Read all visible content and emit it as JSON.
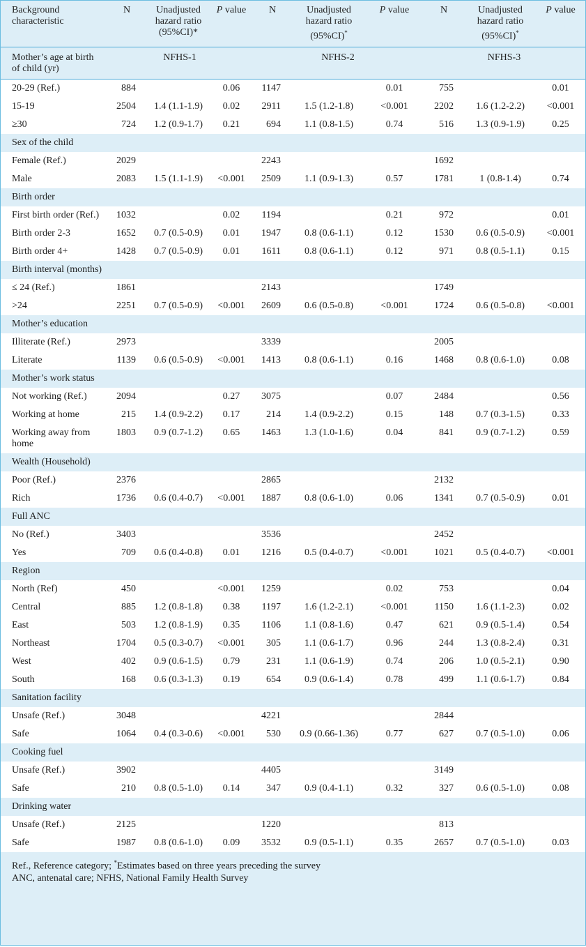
{
  "table": {
    "header": [
      "Background characteristic",
      "N",
      {
        "text": "Unadjusted hazard ratio (95%CI)*"
      },
      {
        "em": "P",
        "text": "value"
      },
      "N",
      {
        "text": "Unadjusted hazard ratio (95%CI)",
        "sup": "*"
      },
      {
        "em": "P",
        "text": "value"
      },
      "N",
      {
        "text": "Unadjusted hazard ratio (95%CI)",
        "sup": "*"
      },
      {
        "em": "P",
        "text": "value"
      }
    ],
    "group_row": {
      "label": "Mother’s age at birth of child (yr)",
      "surveys": [
        "NFHS-1",
        "NFHS-2",
        "NFHS-3"
      ]
    },
    "sections": [
      {
        "rows": [
          [
            "20-29 (Ref.)",
            884,
            null,
            "0.06",
            1147,
            null,
            "0.01",
            755,
            null,
            "0.01"
          ],
          [
            "15-19",
            2504,
            "1.4 (1.1-1.9)",
            "0.02",
            2911,
            "1.5 (1.2-1.8)",
            "<0.001",
            2202,
            "1.6 (1.2-2.2)",
            "<0.001"
          ],
          [
            "≥30",
            724,
            "1.2 (0.9-1.7)",
            "0.21",
            694,
            "1.1 (0.8-1.5)",
            "0.74",
            516,
            "1.3 (0.9-1.9)",
            "0.25"
          ]
        ]
      },
      {
        "title": "Sex of the child",
        "rows": [
          [
            "Female (Ref.)",
            2029,
            null,
            null,
            2243,
            null,
            null,
            1692,
            null,
            null
          ],
          [
            "Male",
            2083,
            "1.5 (1.1-1.9)",
            "<0.001",
            2509,
            "1.1 (0.9-1.3)",
            "0.57",
            1781,
            "1 (0.8-1.4)",
            "0.74"
          ]
        ]
      },
      {
        "title": "Birth order",
        "rows": [
          [
            "First birth order (Ref.)",
            1032,
            null,
            "0.02",
            1194,
            null,
            "0.21",
            972,
            null,
            "0.01"
          ],
          [
            "Birth order 2-3",
            1652,
            "0.7 (0.5-0.9)",
            "0.01",
            1947,
            "0.8 (0.6-1.1)",
            "0.12",
            1530,
            "0.6 (0.5-0.9)",
            "<0.001"
          ],
          [
            "Birth order 4+",
            1428,
            "0.7 (0.5-0.9)",
            "0.01",
            1611,
            "0.8 (0.6-1.1)",
            "0.12",
            971,
            "0.8 (0.5-1.1)",
            "0.15"
          ]
        ]
      },
      {
        "title": "Birth interval (months)",
        "rows": [
          [
            "≤ 24 (Ref.)",
            1861,
            null,
            null,
            2143,
            null,
            null,
            1749,
            null,
            null
          ],
          [
            ">24",
            2251,
            "0.7 (0.5-0.9)",
            "<0.001",
            2609,
            "0.6 (0.5-0.8)",
            "<0.001",
            1724,
            "0.6 (0.5-0.8)",
            "<0.001"
          ]
        ]
      },
      {
        "title": "Mother’s education",
        "rows": [
          [
            "Illiterate (Ref.)",
            2973,
            null,
            null,
            3339,
            null,
            null,
            2005,
            null,
            null
          ],
          [
            "Literate",
            1139,
            "0.6 (0.5-0.9)",
            "<0.001",
            1413,
            "0.8 (0.6-1.1)",
            "0.16",
            1468,
            "0.8 (0.6-1.0)",
            "0.08"
          ]
        ]
      },
      {
        "title": "Mother’s work status",
        "rows": [
          [
            "Not working (Ref.)",
            2094,
            null,
            "0.27",
            3075,
            null,
            "0.07",
            2484,
            null,
            "0.56"
          ],
          [
            "Working at home",
            215,
            "1.4 (0.9-2.2)",
            "0.17",
            214,
            "1.4 (0.9-2.2)",
            "0.15",
            148,
            "0.7 (0.3-1.5)",
            "0.33"
          ],
          [
            "Working away from home",
            1803,
            "0.9 (0.7-1.2)",
            "0.65",
            1463,
            "1.3 (1.0-1.6)",
            "0.04",
            841,
            "0.9 (0.7-1.2)",
            "0.59"
          ]
        ]
      },
      {
        "title": "Wealth (Household)",
        "rows": [
          [
            "Poor (Ref.)",
            2376,
            null,
            null,
            2865,
            null,
            null,
            2132,
            null,
            null
          ],
          [
            "Rich",
            1736,
            "0.6 (0.4-0.7)",
            "<0.001",
            1887,
            "0.8 (0.6-1.0)",
            "0.06",
            1341,
            "0.7 (0.5-0.9)",
            "0.01"
          ]
        ]
      },
      {
        "title": "Full ANC",
        "rows": [
          [
            "No (Ref.)",
            3403,
            null,
            null,
            3536,
            null,
            null,
            2452,
            null,
            null
          ],
          [
            "Yes",
            709,
            "0.6 (0.4-0.8)",
            "0.01",
            1216,
            "0.5 (0.4-0.7)",
            "<0.001",
            1021,
            "0.5 (0.4-0.7)",
            "<0.001"
          ]
        ]
      },
      {
        "title": "Region",
        "rows": [
          [
            "North (Ref)",
            450,
            null,
            "<0.001",
            1259,
            null,
            "0.02",
            753,
            null,
            "0.04"
          ],
          [
            "Central",
            885,
            "1.2 (0.8-1.8)",
            "0.38",
            1197,
            "1.6 (1.2-2.1)",
            "<0.001",
            1150,
            "1.6 (1.1-2.3)",
            "0.02"
          ],
          [
            "East",
            503,
            "1.2 (0.8-1.9)",
            "0.35",
            1106,
            "1.1 (0.8-1.6)",
            "0.47",
            621,
            "0.9 (0.5-1.4)",
            "0.54"
          ],
          [
            "Northeast",
            1704,
            "0.5 (0.3-0.7)",
            "<0.001",
            305,
            "1.1 (0.6-1.7)",
            "0.96",
            244,
            "1.3 (0.8-2.4)",
            "0.31"
          ],
          [
            "West",
            402,
            "0.9 (0.6-1.5)",
            "0.79",
            231,
            "1.1 (0.6-1.9)",
            "0.74",
            206,
            "1.0 (0.5-2.1)",
            "0.90"
          ],
          [
            "South",
            168,
            "0.6 (0.3-1.3)",
            "0.19",
            654,
            "0.9 (0.6-1.4)",
            "0.78",
            499,
            "1.1 (0.6-1.7)",
            "0.84"
          ]
        ]
      },
      {
        "title": "Sanitation facility",
        "rows": [
          [
            "Unsafe (Ref.)",
            3048,
            null,
            null,
            4221,
            null,
            null,
            2844,
            null,
            null
          ],
          [
            "Safe",
            1064,
            "0.4 (0.3-0.6)",
            "<0.001",
            530,
            "0.9 (0.66-1.36)",
            "0.77",
            627,
            "0.7 (0.5-1.0)",
            "0.06"
          ]
        ]
      },
      {
        "title": "Cooking fuel",
        "rows": [
          [
            "Unsafe (Ref.)",
            3902,
            null,
            null,
            4405,
            null,
            null,
            3149,
            null,
            null
          ],
          [
            "Safe",
            210,
            "0.8 (0.5-1.0)",
            "0.14",
            347,
            "0.9 (0.4-1.1)",
            "0.32",
            327,
            "0.6 (0.5-1.0)",
            "0.08"
          ]
        ]
      },
      {
        "title": "Drinking water",
        "rows": [
          [
            "Unsafe (Ref.)",
            2125,
            null,
            null,
            1220,
            null,
            null,
            813,
            null,
            null
          ],
          [
            "Safe",
            1987,
            "0.8 (0.6-1.0)",
            "0.09",
            3532,
            "0.9 (0.5-1.1)",
            "0.35",
            2657,
            "0.7 (0.5-1.0)",
            "0.03"
          ]
        ]
      }
    ],
    "notes": [
      {
        "prefix": "Ref., Reference category; ",
        "sup": "*",
        "text": "Estimates based on three years preceding the survey"
      },
      {
        "text": "ANC, antenatal care; NFHS, National Family Health Survey"
      }
    ]
  }
}
